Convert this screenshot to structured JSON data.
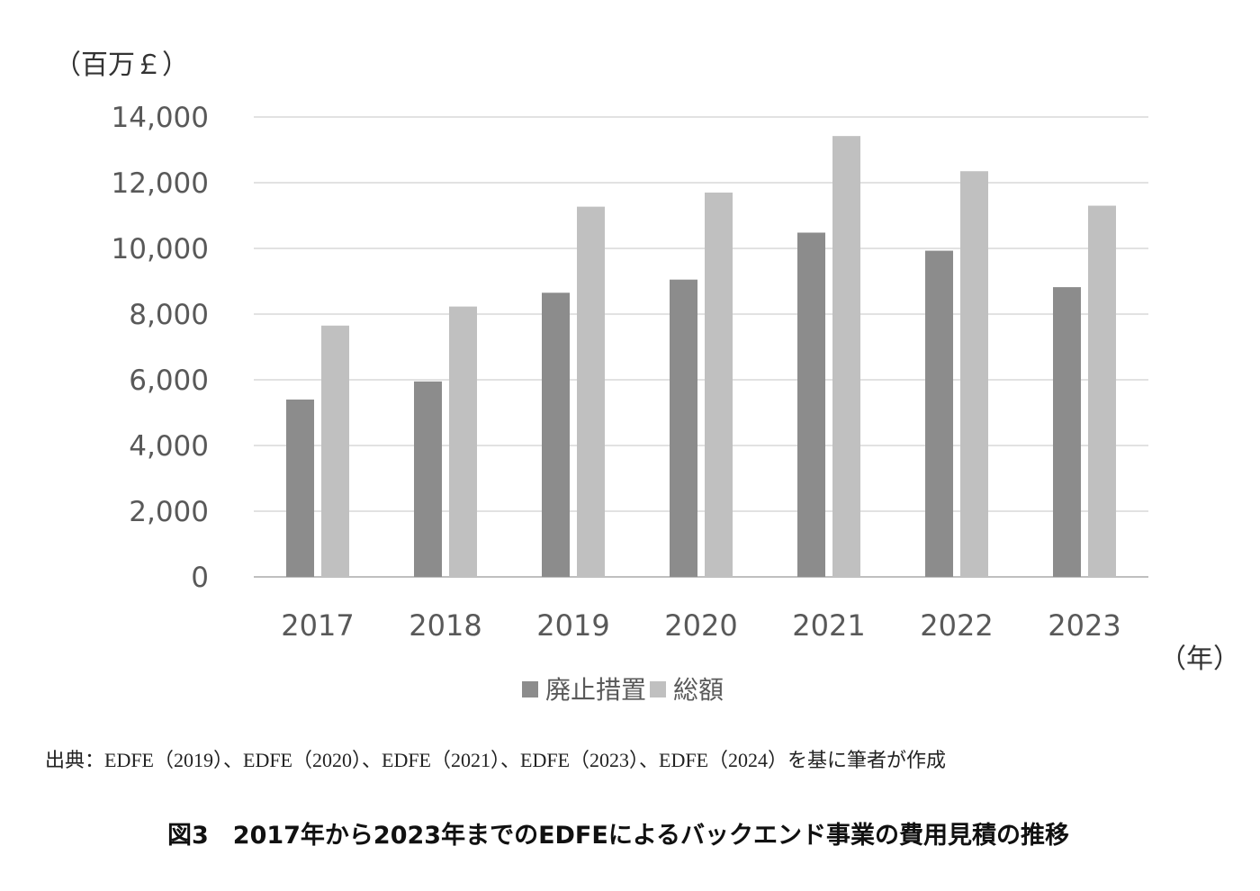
{
  "y_unit_label": "（百万￡）",
  "x_unit_label": "（年）",
  "source_note": "出典：EDFE（2019）、EDFE（2020）、EDFE（2021）、EDFE（2023）、EDFE（2024）を基に筆者が作成",
  "figure_caption": "図3　2017年から2023年までのEDFEによるバックエンド事業の費用見積の推移",
  "colors": {
    "series_1": "#8c8c8c",
    "series_2": "#c0c0c0",
    "grid": "#d9d9d9",
    "tick_text": "#595959"
  },
  "chart_data": {
    "type": "bar",
    "categories": [
      "2017",
      "2018",
      "2019",
      "2020",
      "2021",
      "2022",
      "2023"
    ],
    "series": [
      {
        "name": "廃止措置",
        "values": [
          5400,
          5950,
          8650,
          9050,
          10480,
          9930,
          8820
        ]
      },
      {
        "name": "総額",
        "values": [
          7650,
          8230,
          11270,
          11700,
          13420,
          12350,
          11300
        ]
      }
    ],
    "yticks": [
      "0",
      "2,000",
      "4,000",
      "6,000",
      "8,000",
      "10,000",
      "12,000",
      "14,000"
    ],
    "ylim": [
      0,
      14000
    ],
    "grid": true,
    "legend_position": "bottom"
  }
}
